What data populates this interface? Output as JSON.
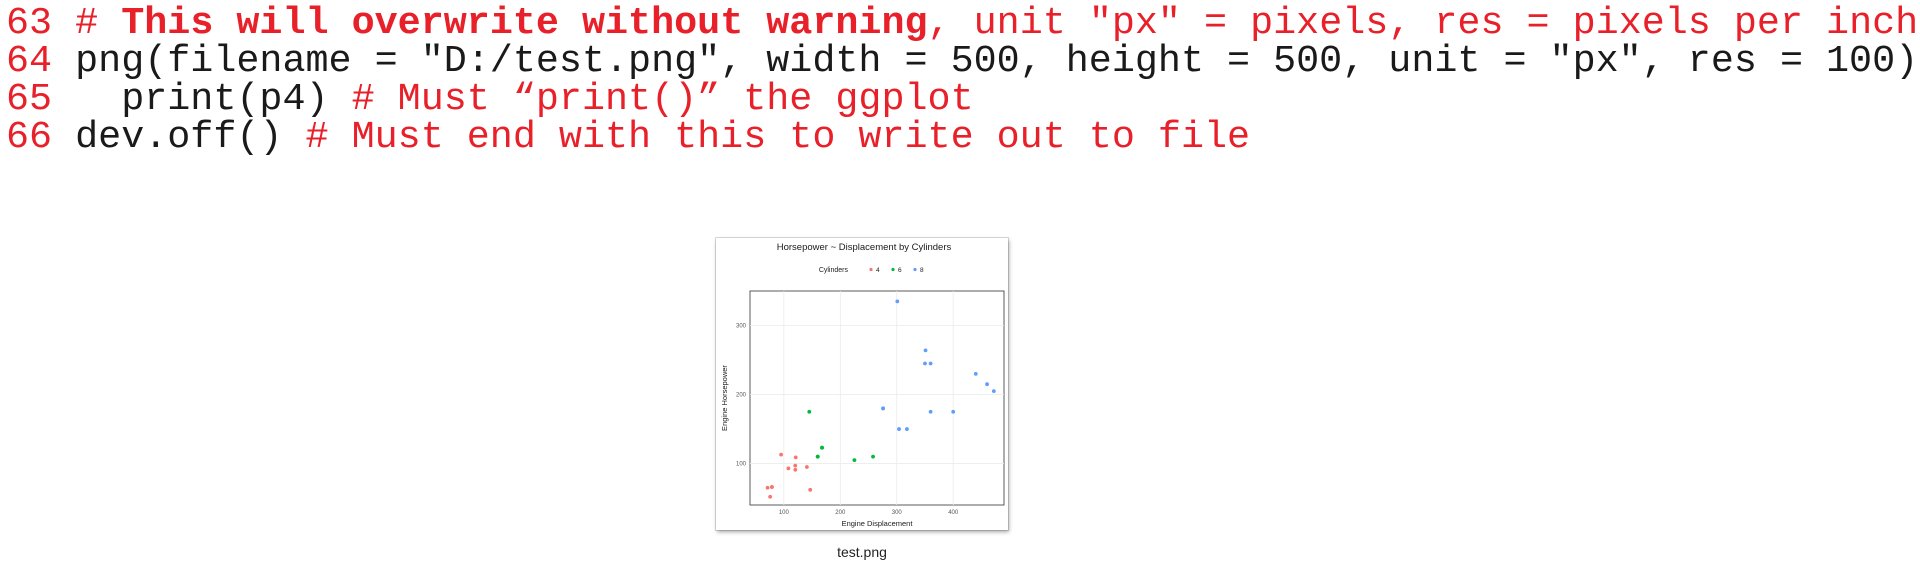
{
  "code_lines": [
    {
      "number": "63",
      "segments": [
        {
          "text": " # ",
          "style": "red"
        },
        {
          "text": "This will overwrite without warning",
          "style": "red-bold"
        },
        {
          "text": ", unit \"px\" = pixels, res = pixels per inch",
          "style": "red"
        }
      ]
    },
    {
      "number": "64",
      "segments": [
        {
          "text": " png(filename = \"D:/test.png\", width = 500, height = 500, unit = \"px\", res = 100)",
          "style": "plain"
        }
      ]
    },
    {
      "number": "65",
      "segments": [
        {
          "text": "   print(p4) ",
          "style": "plain"
        },
        {
          "text": "# Must “print()” the ggplot",
          "style": "red"
        }
      ]
    },
    {
      "number": "66",
      "segments": [
        {
          "text": " dev.off() ",
          "style": "plain"
        },
        {
          "text": "# Must end with this to write out to file",
          "style": "red"
        }
      ]
    }
  ],
  "colors": {
    "comment": "#e8202a",
    "code": "#1a1a1a",
    "cyl4": "#f8766d",
    "cyl6": "#00ba38",
    "cyl8": "#619cff"
  },
  "thumbnail": {
    "caption": "test.png"
  },
  "chart_data": {
    "type": "scatter",
    "title": "Horsepower ~ Displacement by Cylinders",
    "xlabel": "Engine Displacement",
    "ylabel": "Engine Horsepower",
    "legend_title": "Cylinders",
    "legend_position": "top",
    "grid": true,
    "xlim": [
      40,
      490
    ],
    "ylim": [
      40,
      350
    ],
    "xticks": [
      100,
      200,
      300,
      400
    ],
    "yticks": [
      100,
      200,
      300
    ],
    "series": [
      {
        "name": "4",
        "color": "#f8766d",
        "points": [
          [
            108,
            93
          ],
          [
            146.7,
            62
          ],
          [
            140.8,
            95
          ],
          [
            78.7,
            66
          ],
          [
            75.7,
            52
          ],
          [
            71.1,
            65
          ],
          [
            120.1,
            97
          ],
          [
            79,
            66
          ],
          [
            120.3,
            91
          ],
          [
            95.1,
            113
          ],
          [
            121,
            109
          ]
        ]
      },
      {
        "name": "6",
        "color": "#00ba38",
        "points": [
          [
            160,
            110
          ],
          [
            160,
            110
          ],
          [
            258,
            110
          ],
          [
            225,
            105
          ],
          [
            167.6,
            123
          ],
          [
            167.6,
            123
          ],
          [
            145,
            175
          ]
        ]
      },
      {
        "name": "8",
        "color": "#619cff",
        "points": [
          [
            360,
            175
          ],
          [
            360,
            245
          ],
          [
            275.8,
            180
          ],
          [
            275.8,
            180
          ],
          [
            275.8,
            180
          ],
          [
            472,
            205
          ],
          [
            460,
            215
          ],
          [
            440,
            230
          ],
          [
            318,
            150
          ],
          [
            304,
            150
          ],
          [
            350,
            245
          ],
          [
            400,
            175
          ],
          [
            351,
            264
          ],
          [
            301,
            335
          ]
        ]
      }
    ]
  }
}
